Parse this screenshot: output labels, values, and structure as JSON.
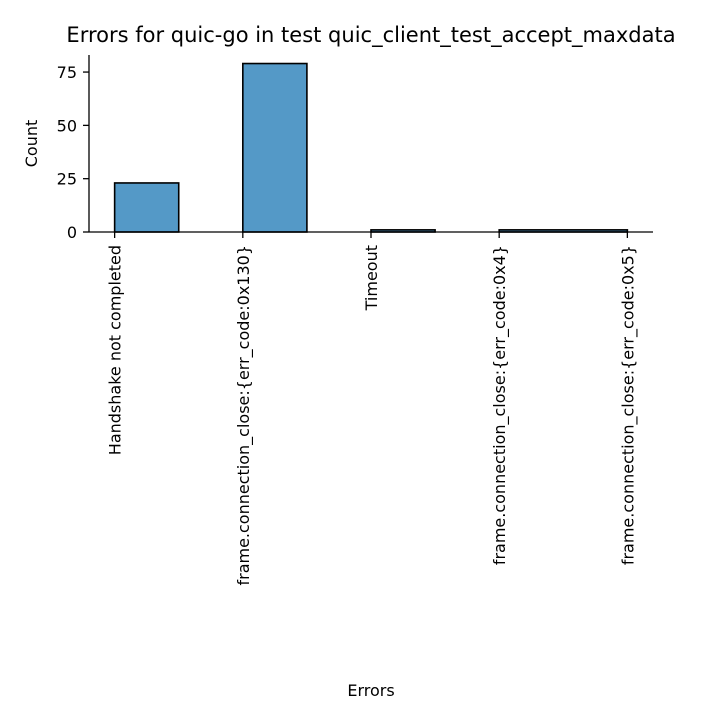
{
  "chart_data": {
    "type": "bar",
    "title": "Errors for quic-go in test quic_client_test_accept_maxdata",
    "xlabel": "Errors",
    "ylabel": "Count",
    "categories": [
      "Handshake not completed",
      "frame.connection_close:{err_code:0x130}",
      "Timeout",
      "frame.connection_close:{err_code:0x4}",
      "frame.connection_close:{err_code:0x5}"
    ],
    "bins": [
      {
        "x_start": 0,
        "x_end": 0.5,
        "value": 23
      },
      {
        "x_start": 1,
        "x_end": 1.5,
        "value": 79
      },
      {
        "x_start": 2,
        "x_end": 2.5,
        "value": 1
      },
      {
        "x_start": 3,
        "x_end": 4,
        "value": 1
      }
    ],
    "ylim": [
      0,
      83
    ],
    "yticks": [
      0,
      25,
      50,
      75
    ],
    "xlim": [
      -0.2,
      4.2
    ],
    "bar_color": "#5499c7",
    "edge_color": "#000000",
    "grid": false,
    "spines": [
      "left",
      "bottom"
    ]
  }
}
